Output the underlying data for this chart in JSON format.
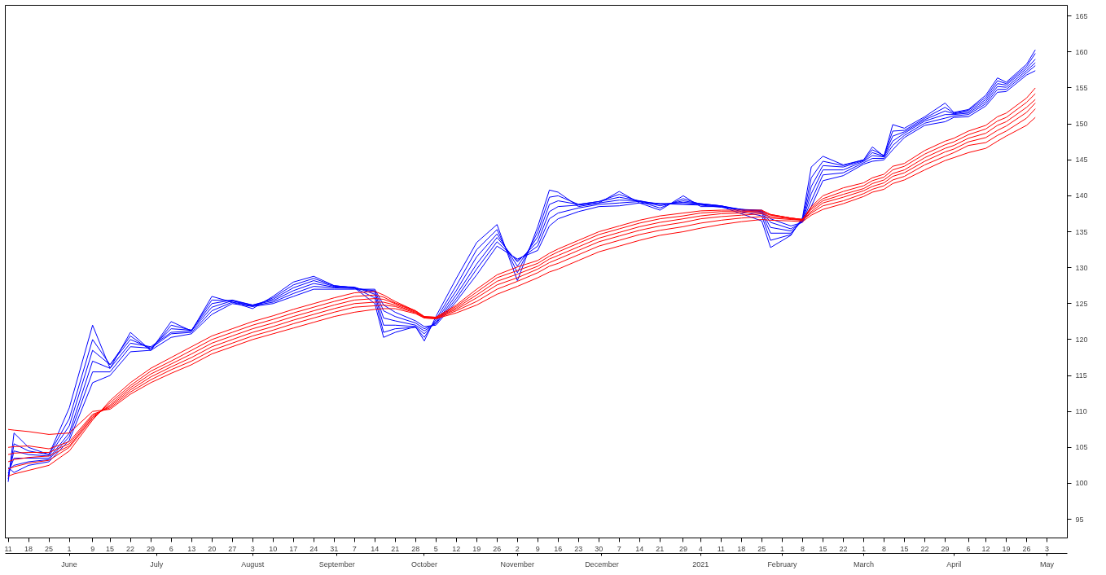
{
  "chart_data": {
    "type": "line",
    "x": [
      "2020-05-11",
      "2020-05-13",
      "2020-05-18",
      "2020-05-25",
      "2020-06-01",
      "2020-06-09",
      "2020-06-15",
      "2020-06-22",
      "2020-06-29",
      "2020-07-06",
      "2020-07-13",
      "2020-07-20",
      "2020-07-27",
      "2020-08-03",
      "2020-08-10",
      "2020-08-17",
      "2020-08-24",
      "2020-08-31",
      "2020-09-07",
      "2020-09-14",
      "2020-09-17",
      "2020-09-21",
      "2020-09-28",
      "2020-10-01",
      "2020-10-05",
      "2020-10-12",
      "2020-10-19",
      "2020-10-26",
      "2020-11-02",
      "2020-11-09",
      "2020-11-13",
      "2020-11-16",
      "2020-11-23",
      "2020-11-30",
      "2020-12-07",
      "2020-12-14",
      "2020-12-21",
      "2020-12-29",
      "2021-01-04",
      "2021-01-11",
      "2021-01-18",
      "2021-01-25",
      "2021-01-28",
      "2021-02-04",
      "2021-02-08",
      "2021-02-11",
      "2021-02-15",
      "2021-02-22",
      "2021-03-01",
      "2021-03-04",
      "2021-03-08",
      "2021-03-11",
      "2021-03-15",
      "2021-03-22",
      "2021-03-29",
      "2021-04-01",
      "2021-04-06",
      "2021-04-12",
      "2021-04-16",
      "2021-04-19",
      "2021-04-26",
      "2021-04-29"
    ],
    "series": [
      {
        "color": "#0000ff",
        "values": [
          100.2,
          107,
          105,
          104,
          110.5,
          122,
          116,
          121,
          118.5,
          122.5,
          121.2,
          126,
          125.2,
          124.3,
          126,
          128,
          128.8,
          127.5,
          127.2,
          125,
          120.3,
          121,
          121.8,
          119.8,
          123.2,
          128.5,
          133.5,
          136,
          128.2,
          135.7,
          140.8,
          140.5,
          138.5,
          139,
          140.6,
          139,
          138,
          140,
          138.5,
          138.5,
          137.5,
          136.5,
          132.8,
          134.5,
          137,
          144,
          145.5,
          144.3,
          145,
          146.8,
          145.5,
          149.9,
          149.4,
          151,
          152.9,
          151.6,
          152,
          154,
          156.4,
          155.8,
          158.3,
          160.3
        ]
      },
      {
        "color": "#0000ff",
        "values": [
          100.6,
          105.5,
          104.5,
          104,
          109,
          120,
          116.5,
          120.5,
          118.5,
          122,
          121.3,
          125.5,
          125.4,
          124.6,
          125.8,
          127.6,
          128.5,
          127.5,
          127.2,
          125.8,
          121,
          121.5,
          121.7,
          120.3,
          122.8,
          127.5,
          132.5,
          135.3,
          129.3,
          135,
          139.8,
          140,
          138.8,
          139.2,
          140.2,
          139.2,
          138.3,
          139.6,
          138.8,
          138.6,
          137.8,
          137.2,
          133.8,
          134.6,
          136.8,
          142.5,
          144.8,
          144.2,
          145,
          146.4,
          145.6,
          149,
          149.1,
          150.8,
          152.3,
          151.5,
          151.9,
          153.7,
          156,
          155.6,
          158,
          159.8
        ]
      },
      {
        "color": "#0000ff",
        "values": [
          101,
          104.5,
          104,
          103.8,
          108,
          118.5,
          116.5,
          120,
          118.8,
          121.5,
          121.3,
          125,
          125.5,
          124.8,
          125.6,
          127.2,
          128.2,
          127.4,
          127.3,
          126.3,
          122,
          122,
          121.8,
          120.8,
          122.5,
          126.8,
          131.5,
          134.7,
          130.2,
          134.3,
          138.8,
          139.3,
          138.8,
          139.2,
          139.8,
          139.3,
          138.6,
          139.3,
          138.9,
          138.6,
          138,
          137.6,
          134.8,
          134.8,
          136.6,
          141.3,
          144.2,
          144,
          144.9,
          146,
          145.5,
          148.3,
          148.9,
          150.6,
          151.8,
          151.4,
          151.7,
          153.4,
          155.6,
          155.4,
          157.7,
          159
        ]
      },
      {
        "color": "#0000ff",
        "values": [
          101.4,
          103.5,
          103.5,
          103.5,
          107,
          117,
          116,
          119.5,
          119,
          121,
          121.2,
          124.5,
          125.4,
          124.8,
          125.4,
          126.8,
          127.8,
          127.3,
          127.2,
          126.6,
          123,
          122.6,
          122,
          121.2,
          122.3,
          126.2,
          130.5,
          134.2,
          130.8,
          133.6,
          137.8,
          138.5,
          138.7,
          139,
          139.4,
          139.3,
          138.8,
          139.1,
          138.9,
          138.6,
          138.1,
          137.8,
          135.6,
          135.1,
          136.5,
          140.3,
          143.6,
          143.6,
          144.8,
          145.6,
          145.4,
          147.6,
          148.7,
          150.4,
          151.3,
          151.3,
          151.5,
          153.1,
          155.2,
          155.1,
          157.4,
          158.5
        ]
      },
      {
        "color": "#0000ff",
        "values": [
          101.8,
          102.5,
          103,
          103.3,
          106.5,
          115.5,
          115.5,
          119,
          118.8,
          120.8,
          121,
          124,
          125.2,
          124.7,
          125.2,
          126.4,
          127.4,
          127.2,
          127.1,
          126.8,
          124,
          123.2,
          122.3,
          121.5,
          122.2,
          125.7,
          129.8,
          133.6,
          131,
          133,
          136.8,
          137.6,
          138.3,
          138.8,
          139,
          139.2,
          138.9,
          138.9,
          138.8,
          138.5,
          138.1,
          137.9,
          136.3,
          135.4,
          136.4,
          139.3,
          142.9,
          143.2,
          144.6,
          145.2,
          145.2,
          147,
          148.4,
          150.1,
          150.8,
          151.1,
          151.3,
          152.8,
          154.8,
          154.8,
          157.1,
          158.1
        ]
      },
      {
        "color": "#0000ff",
        "values": [
          102.2,
          101.5,
          102.5,
          103,
          106,
          114,
          115,
          118.3,
          118.5,
          120.3,
          120.8,
          123.5,
          125,
          124.6,
          125,
          126,
          127,
          127,
          127,
          127,
          124.8,
          123.8,
          122.6,
          121.8,
          122,
          125.3,
          129,
          133,
          131.2,
          132.4,
          135.8,
          136.8,
          137.8,
          138.5,
          138.6,
          139,
          138.9,
          138.8,
          138.7,
          138.4,
          138.1,
          138,
          136.8,
          135.8,
          136.3,
          138.5,
          142.1,
          142.8,
          144.4,
          144.8,
          145,
          146.4,
          148.1,
          149.8,
          150.3,
          150.9,
          151,
          152.5,
          154.4,
          154.5,
          156.8,
          157.4
        ]
      },
      {
        "color": "#ff0000",
        "values": [
          101,
          101.3,
          101.8,
          102.5,
          104.5,
          108.8,
          111.5,
          114,
          116,
          117.5,
          119,
          120.5,
          121.5,
          122.5,
          123.3,
          124.2,
          125,
          125.8,
          126.5,
          126.7,
          126.2,
          125.3,
          124,
          123.2,
          123.1,
          124.8,
          127,
          129,
          130.1,
          131,
          132,
          132.6,
          133.8,
          135,
          135.8,
          136.6,
          137.2,
          137.6,
          137.9,
          138,
          138,
          138,
          137.4,
          136.9,
          136.7,
          138.5,
          140,
          141.1,
          141.8,
          142.5,
          143,
          144.1,
          144.5,
          146.3,
          147.6,
          148,
          149,
          149.8,
          151,
          151.5,
          153.6,
          155
        ]
      },
      {
        "color": "#ff0000",
        "values": [
          102,
          102.3,
          102.8,
          103.2,
          105,
          109,
          111.2,
          113.6,
          115.6,
          117,
          118.5,
          120,
          121,
          122,
          122.8,
          123.7,
          124.5,
          125.3,
          126,
          126.2,
          125.9,
          125.1,
          124,
          123.2,
          123.1,
          124.6,
          126.6,
          128.6,
          129.6,
          130.6,
          131.6,
          132.2,
          133.4,
          134.6,
          135.4,
          136.2,
          136.8,
          137.2,
          137.6,
          137.8,
          137.8,
          137.9,
          137.4,
          136.9,
          136.7,
          138.3,
          139.6,
          140.6,
          141.4,
          142.1,
          142.6,
          143.6,
          144.1,
          145.8,
          147.1,
          147.5,
          148.5,
          149.3,
          150.4,
          150.9,
          153,
          154.2
        ]
      },
      {
        "color": "#ff0000",
        "values": [
          103,
          103.3,
          103.6,
          103.8,
          105.2,
          109.2,
          110.9,
          113.3,
          115.2,
          116.6,
          118,
          119.5,
          120.5,
          121.5,
          122.3,
          123.2,
          124,
          124.8,
          125.5,
          125.7,
          125.6,
          125,
          123.9,
          123.1,
          123,
          124.4,
          126.2,
          128.1,
          129.1,
          130.2,
          131.2,
          131.7,
          132.9,
          134.1,
          134.9,
          135.7,
          136.3,
          136.8,
          137.2,
          137.5,
          137.6,
          137.7,
          137.3,
          136.9,
          136.7,
          138.1,
          139.3,
          140.2,
          141,
          141.7,
          142.2,
          143.1,
          143.6,
          145.3,
          146.6,
          147,
          148,
          148.7,
          149.8,
          150.3,
          152.3,
          153.4
        ]
      },
      {
        "color": "#ff0000",
        "values": [
          104,
          104.2,
          104.3,
          104.3,
          105.5,
          109.4,
          110.7,
          113,
          114.8,
          116.2,
          117.5,
          119,
          120,
          121,
          121.8,
          122.7,
          123.5,
          124.3,
          125,
          125.2,
          125.2,
          124.8,
          123.8,
          123.1,
          123,
          124.2,
          125.8,
          127.6,
          128.6,
          129.8,
          130.7,
          131.2,
          132.4,
          133.6,
          134.4,
          135.2,
          135.8,
          136.3,
          136.8,
          137.1,
          137.3,
          137.5,
          137.1,
          136.8,
          136.6,
          137.8,
          139,
          139.8,
          140.7,
          141.3,
          141.8,
          142.7,
          143.2,
          144.8,
          146.1,
          146.5,
          147.5,
          148.1,
          149.1,
          149.7,
          151.6,
          152.9
        ]
      },
      {
        "color": "#ff0000",
        "values": [
          105,
          105.1,
          105.2,
          104.8,
          105.8,
          109.6,
          110.5,
          112.7,
          114.4,
          115.8,
          117,
          118.5,
          119.5,
          120.5,
          121.3,
          122.2,
          123,
          123.8,
          124.5,
          124.7,
          124.8,
          124.6,
          123.7,
          123,
          122.9,
          124,
          125.3,
          127,
          128.1,
          129.3,
          130.2,
          130.6,
          131.8,
          133,
          133.8,
          134.6,
          135.2,
          135.7,
          136.2,
          136.6,
          136.9,
          137.1,
          136.9,
          136.7,
          136.6,
          137.6,
          138.6,
          139.3,
          140.3,
          140.9,
          141.4,
          142.2,
          142.7,
          144.3,
          145.5,
          146,
          147,
          147.4,
          148.4,
          149,
          150.8,
          152.1
        ]
      },
      {
        "color": "#ff0000",
        "values": [
          107.5,
          107.4,
          107.2,
          106.8,
          107,
          110,
          110.3,
          112.4,
          114,
          115.3,
          116.5,
          118,
          119,
          120,
          120.8,
          121.6,
          122.4,
          123.2,
          123.8,
          124.2,
          124.3,
          124.3,
          123.6,
          123,
          122.9,
          123.7,
          124.8,
          126.3,
          127.4,
          128.6,
          129.4,
          129.8,
          131,
          132.2,
          133,
          133.8,
          134.5,
          135,
          135.5,
          136,
          136.4,
          136.7,
          136.6,
          136.5,
          136.4,
          137.3,
          138.1,
          138.9,
          139.9,
          140.5,
          140.9,
          141.7,
          142.2,
          143.6,
          144.9,
          145.3,
          146,
          146.6,
          147.6,
          148.3,
          149.8,
          150.9
        ]
      }
    ],
    "ylim": [
      92.4,
      166.5
    ],
    "yticks": [
      95,
      100,
      105,
      110,
      115,
      120,
      125,
      130,
      135,
      140,
      145,
      150,
      155,
      160,
      165
    ],
    "xlim": [
      "2020-05-10",
      "2021-05-10"
    ],
    "xticks": [
      {
        "value": "2020-05-11",
        "label": "11"
      },
      {
        "value": "2020-05-18",
        "label": "18"
      },
      {
        "value": "2020-05-25",
        "label": "25"
      },
      {
        "value": "2020-06-01",
        "label": "1"
      },
      {
        "value": "2020-06-09",
        "label": "9"
      },
      {
        "value": "2020-06-15",
        "label": "15"
      },
      {
        "value": "2020-06-22",
        "label": "22"
      },
      {
        "value": "2020-06-29",
        "label": "29"
      },
      {
        "value": "2020-07-06",
        "label": "6"
      },
      {
        "value": "2020-07-13",
        "label": "13"
      },
      {
        "value": "2020-07-20",
        "label": "20"
      },
      {
        "value": "2020-07-27",
        "label": "27"
      },
      {
        "value": "2020-08-03",
        "label": "3"
      },
      {
        "value": "2020-08-10",
        "label": "10"
      },
      {
        "value": "2020-08-17",
        "label": "17"
      },
      {
        "value": "2020-08-24",
        "label": "24"
      },
      {
        "value": "2020-08-31",
        "label": "31"
      },
      {
        "value": "2020-09-07",
        "label": "7"
      },
      {
        "value": "2020-09-14",
        "label": "14"
      },
      {
        "value": "2020-09-21",
        "label": "21"
      },
      {
        "value": "2020-09-28",
        "label": "28"
      },
      {
        "value": "2020-10-05",
        "label": "5"
      },
      {
        "value": "2020-10-12",
        "label": "12"
      },
      {
        "value": "2020-10-19",
        "label": "19"
      },
      {
        "value": "2020-10-26",
        "label": "26"
      },
      {
        "value": "2020-11-02",
        "label": "2"
      },
      {
        "value": "2020-11-09",
        "label": "9"
      },
      {
        "value": "2020-11-16",
        "label": "16"
      },
      {
        "value": "2020-11-23",
        "label": "23"
      },
      {
        "value": "2020-11-30",
        "label": "30"
      },
      {
        "value": "2020-12-07",
        "label": "7"
      },
      {
        "value": "2020-12-14",
        "label": "14"
      },
      {
        "value": "2020-12-21",
        "label": "21"
      },
      {
        "value": "2020-12-29",
        "label": "29"
      },
      {
        "value": "2021-01-04",
        "label": "4"
      },
      {
        "value": "2021-01-11",
        "label": "11"
      },
      {
        "value": "2021-01-18",
        "label": "18"
      },
      {
        "value": "2021-01-25",
        "label": "25"
      },
      {
        "value": "2021-02-01",
        "label": "1"
      },
      {
        "value": "2021-02-08",
        "label": "8"
      },
      {
        "value": "2021-02-15",
        "label": "15"
      },
      {
        "value": "2021-02-22",
        "label": "22"
      },
      {
        "value": "2021-03-01",
        "label": "1"
      },
      {
        "value": "2021-03-08",
        "label": "8"
      },
      {
        "value": "2021-03-15",
        "label": "15"
      },
      {
        "value": "2021-03-22",
        "label": "22"
      },
      {
        "value": "2021-03-29",
        "label": "29"
      },
      {
        "value": "2021-04-06",
        "label": "6"
      },
      {
        "value": "2021-04-12",
        "label": "12"
      },
      {
        "value": "2021-04-19",
        "label": "19"
      },
      {
        "value": "2021-04-26",
        "label": "26"
      },
      {
        "value": "2021-05-03",
        "label": "3"
      }
    ],
    "x2lim": [
      "2020-05-10",
      "2021-05-10"
    ],
    "x2ticks": [
      {
        "value": "2020-06-01",
        "label": "June"
      },
      {
        "value": "2020-07-01",
        "label": "July"
      },
      {
        "value": "2020-08-03",
        "label": "August"
      },
      {
        "value": "2020-09-01",
        "label": "September"
      },
      {
        "value": "2020-10-01",
        "label": "October"
      },
      {
        "value": "2020-11-02",
        "label": "November"
      },
      {
        "value": "2020-12-01",
        "label": "December"
      },
      {
        "value": "2021-01-04",
        "label": "2021"
      },
      {
        "value": "2021-02-01",
        "label": "February"
      },
      {
        "value": "2021-03-01",
        "label": "March"
      },
      {
        "value": "2021-04-01",
        "label": "April"
      },
      {
        "value": "2021-05-03",
        "label": "May"
      }
    ],
    "grid": false,
    "marker": "none",
    "line_style": "solid"
  }
}
